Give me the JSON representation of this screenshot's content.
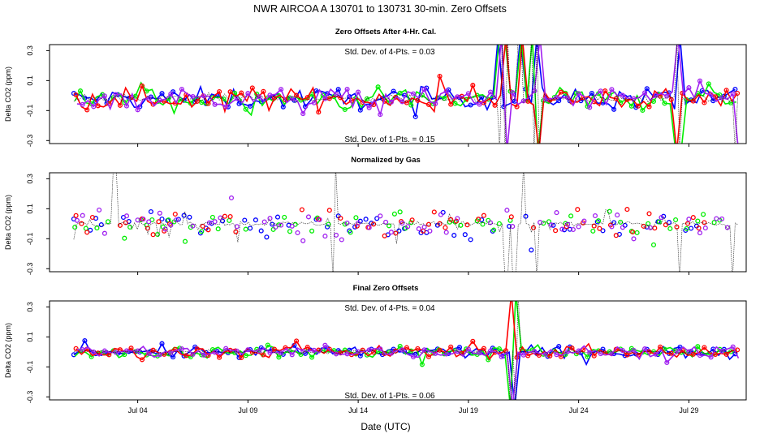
{
  "chart_data": {
    "type": "line",
    "title": "NWR   AIRCOA A   130701 to 130731   30-min. Zero Offsets",
    "xlabel": "Date (UTC)",
    "x_range_days": [
      0,
      31.6
    ],
    "x_ticks": [
      {
        "label": "Jul 04",
        "day": 4
      },
      {
        "label": "Jul 09",
        "day": 9
      },
      {
        "label": "Jul 14",
        "day": 14
      },
      {
        "label": "Jul 19",
        "day": 19
      },
      {
        "label": "Jul 24",
        "day": 24
      },
      {
        "label": "Jul 29",
        "day": 29
      }
    ],
    "ylabel": "Delta CO2 (ppm)",
    "ylim": [
      -0.32,
      0.34
    ],
    "y_ticks": [
      "0.3",
      "0.1",
      "-0.1",
      "-0.3"
    ],
    "y_tick_values": [
      0.3,
      0.1,
      -0.1,
      -0.3
    ],
    "series_colors": {
      "gas1": "#0000ff",
      "gas2": "#00ee00",
      "gas3": "#ff0000",
      "gas4": "#a020f0",
      "mean": "#000000"
    },
    "panels": [
      {
        "title": "Zero Offsets After 4-Hr. Cal.",
        "annotation_top": "Std. Dev. of 4-Pts. = 0.03",
        "annotation_bottom": "Std. Dev. of 1-Pts. = 0.15",
        "std_4pts": 0.03,
        "std_1pt": 0.15,
        "noise_amplitude": 0.07,
        "offset": -0.02,
        "spikes_days": [
          20.5,
          20.7,
          21.3,
          21.9,
          22.2,
          28.5,
          31.1
        ]
      },
      {
        "title": "Normalized by Gas",
        "annotation_top": "",
        "annotation_bottom": "",
        "noise_amplitude": 0.09,
        "offset": 0.0,
        "spikes_days": [
          3.0,
          12.9,
          20.7,
          21.1,
          21.5,
          22.1,
          28.6,
          31.0
        ]
      },
      {
        "title": "Final Zero Offsets",
        "annotation_top": "Std. Dev. of 4-Pts. = 0.04",
        "annotation_bottom": "Std. Dev. of 1-Pts. = 0.06",
        "std_4pts": 0.04,
        "std_1pt": 0.06,
        "noise_amplitude": 0.04,
        "offset": 0.0,
        "spikes_days": [
          20.9,
          21.2
        ]
      }
    ]
  }
}
